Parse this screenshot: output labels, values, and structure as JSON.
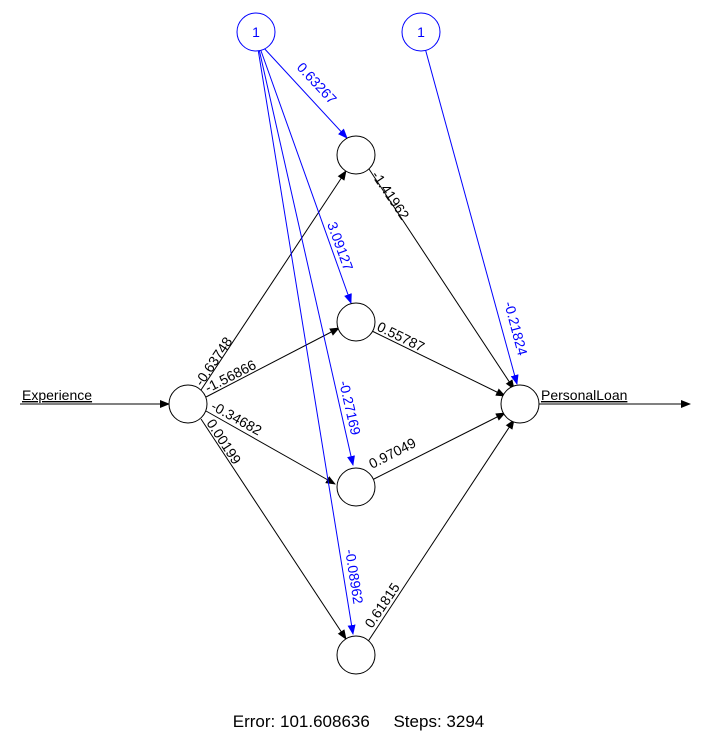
{
  "input": {
    "label": "Experience"
  },
  "output": {
    "label": "PersonalLoan"
  },
  "bias_nodes": {
    "hidden_bias_label": "1",
    "output_bias_label": "1"
  },
  "weights": {
    "input_to_hidden": [
      "-0.63748",
      "-1.56866",
      "-0.34682",
      "0.00199"
    ],
    "bias_to_hidden": [
      "0.63267",
      "3.09127",
      "-0.27169",
      "-0.08962"
    ],
    "hidden_to_output": [
      "-1.41962",
      "0.55787",
      "0.97049",
      "0.61815"
    ],
    "bias_to_output": "-0.21824"
  },
  "footer": {
    "error_label": "Error:",
    "error_value": "101.608636",
    "steps_label": "Steps:",
    "steps_value": "3294"
  },
  "colors": {
    "weights": "#000000",
    "bias": "#0000ff"
  }
}
